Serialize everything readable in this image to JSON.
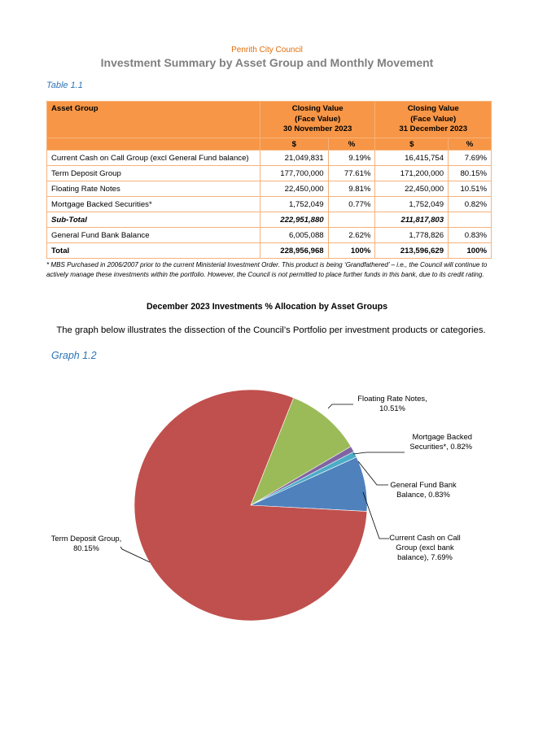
{
  "header": {
    "org": "Penrith City Council",
    "title": "Investment Summary by Asset Group and Monthly Movement"
  },
  "table": {
    "caption": "Table 1.1",
    "col_asset": "Asset Group",
    "col_nov_l1": "Closing Value",
    "col_nov_l2": "(Face Value)",
    "col_nov_l3": "30 November 2023",
    "col_dec_l1": "Closing Value",
    "col_dec_l2": "(Face Value)",
    "col_dec_l3": "31 December 2023",
    "sub_dollar": "$",
    "sub_pct": "%",
    "rows": [
      {
        "name": "Current Cash on Call Group (excl General Fund balance)",
        "nov_value": "21,049,831",
        "nov_pct": "9.19%",
        "dec_value": "16,415,754",
        "dec_pct": "7.69%"
      },
      {
        "name": "Term Deposit Group",
        "nov_value": "177,700,000",
        "nov_pct": "77.61%",
        "dec_value": "171,200,000",
        "dec_pct": "80.15%"
      },
      {
        "name": "Floating Rate Notes",
        "nov_value": "22,450,000",
        "nov_pct": "9.81%",
        "dec_value": "22,450,000",
        "dec_pct": "10.51%"
      },
      {
        "name": "Mortgage Backed Securities*",
        "nov_value": "1,752,049",
        "nov_pct": "0.77%",
        "dec_value": "1,752,049",
        "dec_pct": "0.82%"
      },
      {
        "name": "Sub-Total",
        "nov_value": "222,951,880",
        "nov_pct": "",
        "dec_value": "211,817,803",
        "dec_pct": ""
      },
      {
        "name": "General Fund Bank Balance",
        "nov_value": "6,005,088",
        "nov_pct": "2.62%",
        "dec_value": "1,778,826",
        "dec_pct": "0.83%"
      },
      {
        "name": "Total",
        "nov_value": "228,956,968",
        "nov_pct": "100%",
        "dec_value": "213,596,629",
        "dec_pct": "100%"
      }
    ],
    "footnote": "* MBS Purchased in 2006/2007 prior to the current Ministerial Investment Order. This product is being ‘Grandfathered’ – i.e., the Council will continue to actively manage these investments within the portfolio. However, the Council is not permitted to place further funds in this bank, due to its credit rating."
  },
  "section": {
    "heading": "December 2023 Investments % Allocation by Asset Groups",
    "text": "The graph below illustrates the dissection of the Council’s Portfolio per investment products or categories."
  },
  "chart_data": {
    "type": "pie",
    "title": "Graph 1.2",
    "slices": [
      {
        "label_l1": "Floating Rate Notes,",
        "label_l2": "10.51%",
        "value": 10.51,
        "color": "#9bbb59"
      },
      {
        "label_l1": "Mortgage Backed",
        "label_l2": "Securities*, 0.82%",
        "value": 0.82,
        "color": "#8064a2"
      },
      {
        "label_l1": "General Fund Bank",
        "label_l2": "Balance, 0.83%",
        "value": 0.83,
        "color": "#4bacc6"
      },
      {
        "label_l1": "Current Cash on Call",
        "label_l2": "Group (excl bank",
        "label_l3": "balance), 7.69%",
        "value": 7.69,
        "color": "#4f81bd"
      },
      {
        "label_l1": "Term Deposit Group,",
        "label_l2": "80.15%",
        "value": 80.15,
        "color": "#c0504d"
      }
    ]
  }
}
